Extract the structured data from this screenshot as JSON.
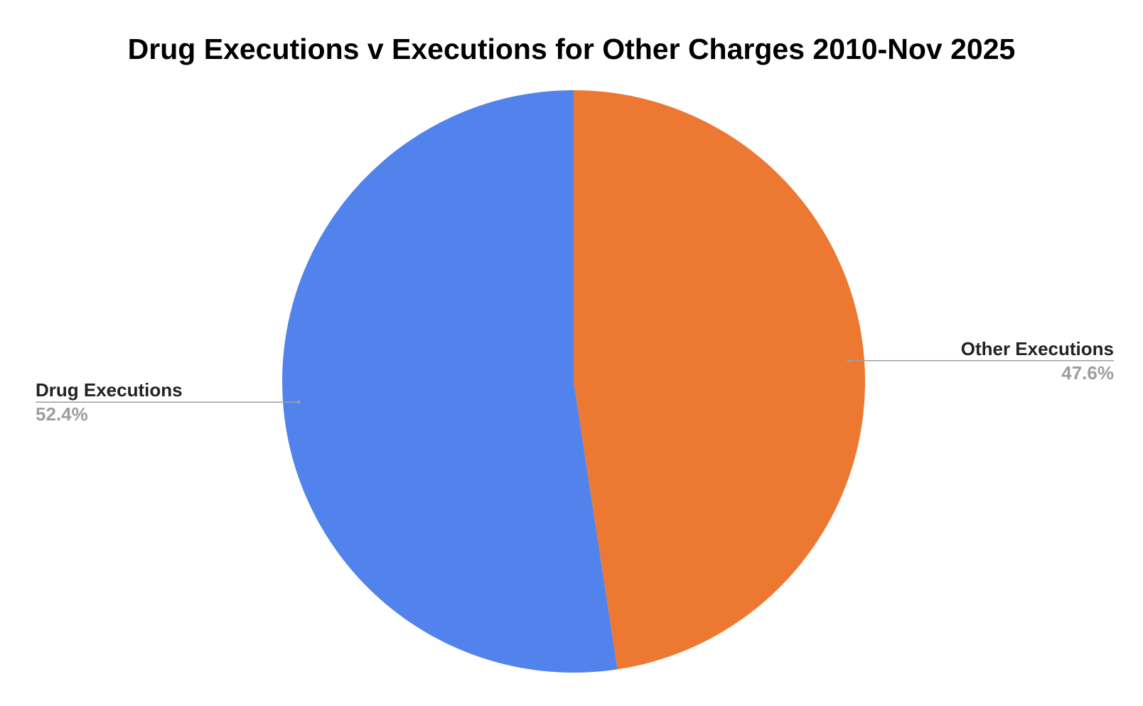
{
  "chart_data": {
    "type": "pie",
    "title": "Drug Executions v Executions for Other Charges 2010-Nov 2025",
    "slices": [
      {
        "label": "Other Executions",
        "value": 47.6,
        "display": "47.6%",
        "color": "#ec7832"
      },
      {
        "label": "Drug Executions",
        "value": 52.4,
        "display": "52.4%",
        "color": "#5283ec"
      }
    ]
  }
}
